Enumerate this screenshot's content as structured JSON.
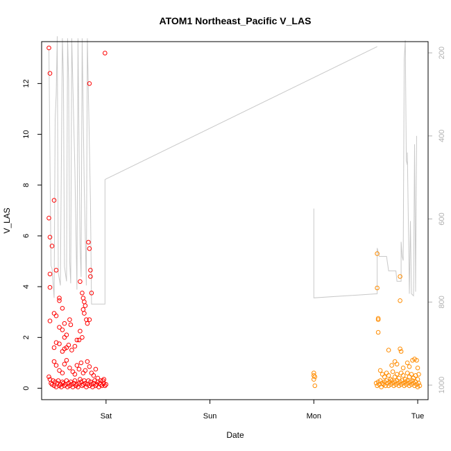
{
  "chart_data": {
    "type": "scatter",
    "title": "ATOM1 Northeast_Pacific V_LAS",
    "xlabel": "Date",
    "ylabel": "V_LAS",
    "x_ticks": [
      "Sat",
      "Sun",
      "Mon",
      "Tue"
    ],
    "x_tick_values": [
      3.0,
      4.0,
      5.0,
      6.0
    ],
    "xlim": [
      2.38,
      6.1
    ],
    "ylim": [
      -0.45,
      13.65
    ],
    "y_ticks": [
      0,
      2,
      4,
      6,
      8,
      10,
      12
    ],
    "y2_ticks": [
      200,
      400,
      600,
      800,
      1000
    ],
    "y2lim": [
      1035,
      173
    ],
    "y2_reversed": true,
    "grid": false,
    "colors": {
      "segment1": "#ff0000",
      "segment2": "#ff8c00",
      "pressure_line": "#c8c8c8",
      "right_axis": "#b0b0b0"
    },
    "series": [
      {
        "values": [
          [
            2.45,
            13.4
          ],
          [
            2.46,
            12.4
          ],
          [
            2.45,
            6.7
          ],
          [
            2.46,
            5.95
          ],
          [
            2.46,
            4.5
          ],
          [
            2.46,
            3.97
          ],
          [
            2.46,
            2.65
          ],
          [
            2.5,
            7.4
          ],
          [
            2.48,
            5.6
          ],
          [
            2.52,
            4.65
          ],
          [
            2.55,
            3.55
          ],
          [
            2.55,
            3.45
          ],
          [
            2.58,
            3.15
          ],
          [
            2.6,
            2.55
          ],
          [
            2.5,
            2.95
          ],
          [
            2.52,
            2.85
          ],
          [
            2.55,
            2.4
          ],
          [
            2.58,
            2.3
          ],
          [
            2.6,
            2.0
          ],
          [
            2.62,
            2.1
          ],
          [
            2.65,
            2.7
          ],
          [
            2.66,
            2.5
          ],
          [
            2.52,
            1.8
          ],
          [
            2.5,
            1.6
          ],
          [
            2.55,
            1.75
          ],
          [
            2.58,
            1.45
          ],
          [
            2.6,
            1.55
          ],
          [
            2.62,
            1.6
          ],
          [
            2.64,
            1.7
          ],
          [
            2.67,
            1.5
          ],
          [
            2.7,
            1.65
          ],
          [
            2.72,
            1.9
          ],
          [
            2.75,
            2.25
          ],
          [
            2.75,
            4.2
          ],
          [
            2.77,
            3.75
          ],
          [
            2.78,
            3.55
          ],
          [
            2.79,
            3.4
          ],
          [
            2.8,
            3.25
          ],
          [
            2.78,
            3.1
          ],
          [
            2.79,
            2.95
          ],
          [
            2.81,
            2.7
          ],
          [
            2.82,
            2.55
          ],
          [
            2.84,
            2.7
          ],
          [
            2.83,
            5.75
          ],
          [
            2.84,
            5.5
          ],
          [
            2.85,
            4.65
          ],
          [
            2.85,
            4.4
          ],
          [
            2.86,
            3.75
          ],
          [
            2.84,
            12.0
          ],
          [
            2.99,
            13.2
          ],
          [
            2.77,
            2.0
          ],
          [
            2.74,
            1.9
          ],
          [
            2.5,
            1.05
          ],
          [
            2.52,
            0.9
          ],
          [
            2.55,
            0.7
          ],
          [
            2.58,
            0.6
          ],
          [
            2.6,
            0.95
          ],
          [
            2.62,
            1.1
          ],
          [
            2.65,
            0.8
          ],
          [
            2.68,
            0.65
          ],
          [
            2.7,
            0.55
          ],
          [
            2.72,
            0.9
          ],
          [
            2.74,
            0.75
          ],
          [
            2.76,
            1.0
          ],
          [
            2.78,
            0.6
          ],
          [
            2.8,
            0.7
          ],
          [
            2.82,
            1.05
          ],
          [
            2.84,
            0.85
          ],
          [
            2.86,
            0.6
          ],
          [
            2.88,
            0.5
          ],
          [
            2.9,
            0.75
          ],
          [
            2.92,
            0.4
          ],
          [
            2.95,
            0.3
          ],
          [
            2.98,
            0.35
          ],
          [
            2.45,
            0.45
          ],
          [
            2.46,
            0.35
          ],
          [
            2.47,
            0.2
          ],
          [
            2.48,
            0.15
          ],
          [
            2.49,
            0.3
          ],
          [
            2.5,
            0.1
          ],
          [
            2.51,
            0.25
          ],
          [
            2.52,
            0.05
          ],
          [
            2.53,
            0.2
          ],
          [
            2.54,
            0.3
          ],
          [
            2.55,
            0.1
          ],
          [
            2.56,
            0.15
          ],
          [
            2.57,
            0.05
          ],
          [
            2.58,
            0.25
          ],
          [
            2.59,
            0.2
          ],
          [
            2.6,
            0.1
          ],
          [
            2.61,
            0.15
          ],
          [
            2.62,
            0.3
          ],
          [
            2.63,
            0.05
          ],
          [
            2.64,
            0.2
          ],
          [
            2.65,
            0.1
          ],
          [
            2.66,
            0.25
          ],
          [
            2.67,
            0.15
          ],
          [
            2.68,
            0.05
          ],
          [
            2.69,
            0.2
          ],
          [
            2.7,
            0.3
          ],
          [
            2.71,
            0.1
          ],
          [
            2.72,
            0.15
          ],
          [
            2.73,
            0.05
          ],
          [
            2.74,
            0.2
          ],
          [
            2.75,
            0.35
          ],
          [
            2.76,
            0.25
          ],
          [
            2.77,
            0.1
          ],
          [
            2.78,
            0.15
          ],
          [
            2.79,
            0.3
          ],
          [
            2.8,
            0.2
          ],
          [
            2.81,
            0.05
          ],
          [
            2.82,
            0.15
          ],
          [
            2.83,
            0.3
          ],
          [
            2.84,
            0.1
          ],
          [
            2.85,
            0.25
          ],
          [
            2.86,
            0.15
          ],
          [
            2.87,
            0.05
          ],
          [
            2.88,
            0.2
          ],
          [
            2.89,
            0.3
          ],
          [
            2.9,
            0.1
          ],
          [
            2.91,
            0.15
          ],
          [
            2.92,
            0.25
          ],
          [
            2.93,
            0.05
          ],
          [
            2.94,
            0.2
          ],
          [
            2.95,
            0.15
          ],
          [
            2.96,
            0.1
          ],
          [
            2.97,
            0.3
          ],
          [
            2.98,
            0.2
          ],
          [
            2.99,
            0.1
          ],
          [
            3.0,
            0.15
          ]
        ]
      },
      {
        "values": [
          [
            5.0,
            0.6
          ],
          [
            5.0,
            0.5
          ],
          [
            5.01,
            0.45
          ],
          [
            5.0,
            0.35
          ],
          [
            5.01,
            0.1
          ],
          [
            5.61,
            5.3
          ],
          [
            5.61,
            3.95
          ],
          [
            5.62,
            2.75
          ],
          [
            5.62,
            2.7
          ],
          [
            5.62,
            2.2
          ],
          [
            5.72,
            1.5
          ],
          [
            5.75,
            0.9
          ],
          [
            5.83,
            4.4
          ],
          [
            5.83,
            3.45
          ],
          [
            5.83,
            1.55
          ],
          [
            5.84,
            1.45
          ],
          [
            5.78,
            1.05
          ],
          [
            5.8,
            0.95
          ],
          [
            5.86,
            0.8
          ],
          [
            5.9,
            1.0
          ],
          [
            5.92,
            0.85
          ],
          [
            5.95,
            1.1
          ],
          [
            5.97,
            1.15
          ],
          [
            5.99,
            1.1
          ],
          [
            6.0,
            0.8
          ],
          [
            6.01,
            0.55
          ],
          [
            5.64,
            0.7
          ],
          [
            5.66,
            0.55
          ],
          [
            5.68,
            0.45
          ],
          [
            5.7,
            0.6
          ],
          [
            5.72,
            0.5
          ],
          [
            5.74,
            0.35
          ],
          [
            5.76,
            0.65
          ],
          [
            5.78,
            0.45
          ],
          [
            5.8,
            0.55
          ],
          [
            5.82,
            0.4
          ],
          [
            5.84,
            0.6
          ],
          [
            5.86,
            0.5
          ],
          [
            5.88,
            0.35
          ],
          [
            5.9,
            0.6
          ],
          [
            5.92,
            0.45
          ],
          [
            5.94,
            0.55
          ],
          [
            5.96,
            0.4
          ],
          [
            5.98,
            0.5
          ],
          [
            6.0,
            0.35
          ],
          [
            5.6,
            0.2
          ],
          [
            5.61,
            0.1
          ],
          [
            5.62,
            0.25
          ],
          [
            5.63,
            0.15
          ],
          [
            5.64,
            0.3
          ],
          [
            5.65,
            0.05
          ],
          [
            5.66,
            0.2
          ],
          [
            5.67,
            0.15
          ],
          [
            5.68,
            0.25
          ],
          [
            5.69,
            0.1
          ],
          [
            5.7,
            0.3
          ],
          [
            5.71,
            0.2
          ],
          [
            5.72,
            0.1
          ],
          [
            5.73,
            0.25
          ],
          [
            5.74,
            0.15
          ],
          [
            5.75,
            0.3
          ],
          [
            5.76,
            0.2
          ],
          [
            5.77,
            0.1
          ],
          [
            5.78,
            0.25
          ],
          [
            5.79,
            0.15
          ],
          [
            5.8,
            0.3
          ],
          [
            5.81,
            0.2
          ],
          [
            5.82,
            0.1
          ],
          [
            5.83,
            0.25
          ],
          [
            5.84,
            0.15
          ],
          [
            5.85,
            0.3
          ],
          [
            5.86,
            0.2
          ],
          [
            5.87,
            0.1
          ],
          [
            5.88,
            0.25
          ],
          [
            5.89,
            0.15
          ],
          [
            5.9,
            0.3
          ],
          [
            5.91,
            0.2
          ],
          [
            5.92,
            0.1
          ],
          [
            5.93,
            0.25
          ],
          [
            5.94,
            0.15
          ],
          [
            5.95,
            0.3
          ],
          [
            5.96,
            0.2
          ],
          [
            5.97,
            0.1
          ],
          [
            5.98,
            0.25
          ],
          [
            5.99,
            0.15
          ],
          [
            6.0,
            0.05
          ],
          [
            6.01,
            0.2
          ],
          [
            6.02,
            0.1
          ]
        ]
      },
      {
        "values": [
          [
            2.45,
            190
          ],
          [
            2.46,
            455
          ],
          [
            2.47,
            712
          ],
          [
            2.48,
            720
          ],
          [
            2.5,
            790
          ],
          [
            2.51,
            360
          ],
          [
            2.52,
            300
          ],
          [
            2.53,
            160
          ],
          [
            2.54,
            730
          ],
          [
            2.56,
            760
          ],
          [
            2.58,
            165
          ],
          [
            2.59,
            260
          ],
          [
            2.6,
            715
          ],
          [
            2.62,
            750
          ],
          [
            2.63,
            165
          ],
          [
            2.64,
            265
          ],
          [
            2.65,
            700
          ],
          [
            2.66,
            755
          ],
          [
            2.67,
            165
          ],
          [
            2.7,
            480
          ],
          [
            2.72,
            770
          ],
          [
            2.73,
            165
          ],
          [
            2.75,
            660
          ],
          [
            2.76,
            740
          ],
          [
            2.77,
            165
          ],
          [
            2.79,
            520
          ],
          [
            2.81,
            760
          ],
          [
            2.82,
            165
          ],
          [
            2.85,
            560
          ],
          [
            2.86,
            805
          ],
          [
            2.88,
            805
          ],
          [
            2.99,
            805
          ],
          [
            2.99,
            505
          ],
          [
            5.61,
            185
          ],
          [
            5.61,
            670
          ],
          [
            5.63,
            690
          ],
          [
            5.7,
            690
          ],
          [
            5.72,
            725
          ],
          [
            5.79,
            725
          ],
          [
            5.8,
            750
          ],
          [
            5.84,
            750
          ],
          [
            5.84,
            655
          ],
          [
            5.85,
            690
          ],
          [
            5.86,
            700
          ],
          [
            5.87,
            215
          ],
          [
            5.88,
            170
          ],
          [
            5.89,
            460
          ],
          [
            5.9,
            470
          ],
          [
            5.9,
            440
          ],
          [
            5.92,
            780
          ],
          [
            5.93,
            605
          ],
          [
            5.94,
            780
          ],
          [
            5.96,
            785
          ],
          [
            5.97,
            420
          ],
          [
            5.98,
            775
          ],
          [
            5.99,
            400
          ],
          [
            5.0,
            575
          ],
          [
            5.0,
            790
          ],
          [
            5.0,
            600
          ],
          [
            5.01,
            650
          ],
          [
            5.01,
            775
          ],
          [
            5.61,
            765
          ],
          [
            5.98,
            760
          ]
        ]
      }
    ]
  }
}
